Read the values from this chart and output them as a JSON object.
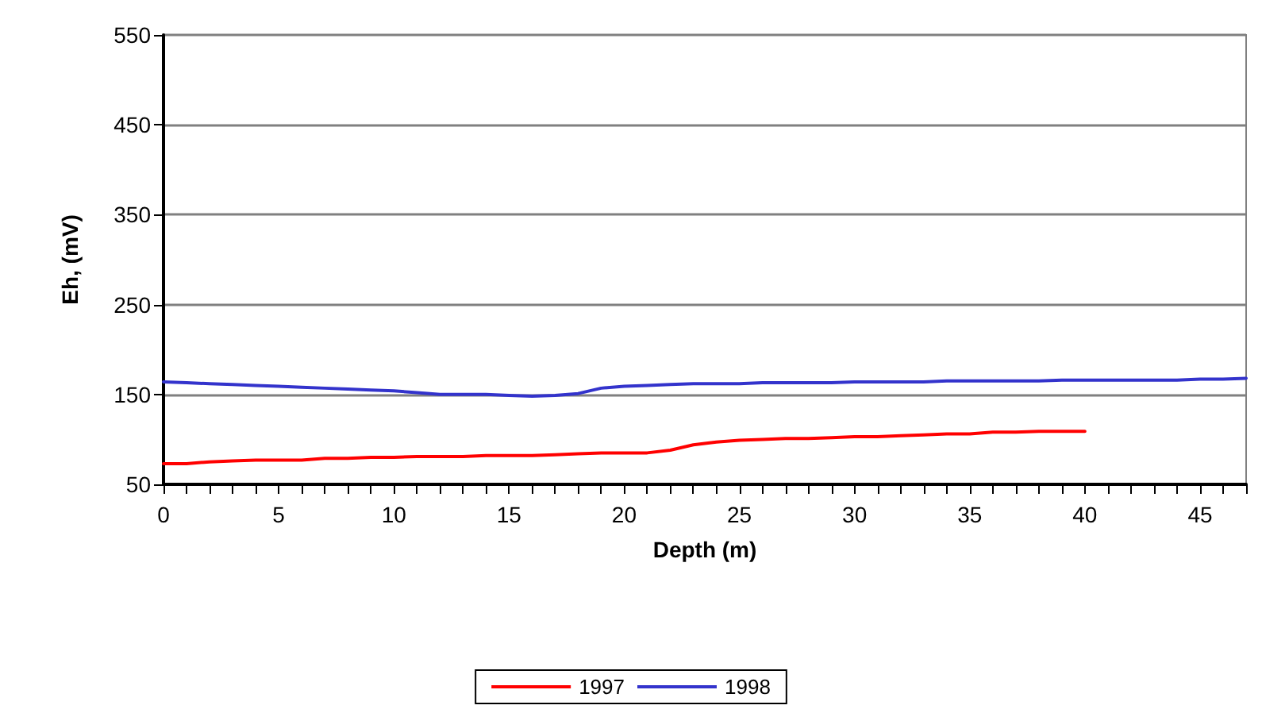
{
  "chart_data": {
    "type": "line",
    "xlabel": "Depth (m)",
    "ylabel": "Eh, (mV)",
    "series": [
      {
        "name": "1997",
        "color": "#ff0000",
        "x": [
          0,
          1,
          2,
          3,
          4,
          5,
          6,
          7,
          8,
          9,
          10,
          11,
          12,
          13,
          14,
          15,
          16,
          17,
          18,
          19,
          20,
          21,
          22,
          23,
          24,
          25,
          26,
          27,
          28,
          29,
          30,
          31,
          32,
          33,
          34,
          35,
          36,
          37,
          38,
          39,
          40
        ],
        "values": [
          73,
          73,
          75,
          76,
          77,
          77,
          77,
          79,
          79,
          80,
          80,
          81,
          81,
          81,
          82,
          82,
          82,
          83,
          84,
          85,
          85,
          85,
          88,
          94,
          97,
          99,
          100,
          101,
          101,
          102,
          103,
          103,
          104,
          105,
          106,
          106,
          108,
          108,
          109,
          109,
          109
        ]
      },
      {
        "name": "1998",
        "color": "#3333cc",
        "x": [
          0,
          1,
          2,
          3,
          4,
          5,
          6,
          7,
          8,
          9,
          10,
          11,
          12,
          13,
          14,
          15,
          16,
          17,
          18,
          19,
          20,
          21,
          22,
          23,
          24,
          25,
          26,
          27,
          28,
          29,
          30,
          31,
          32,
          33,
          34,
          35,
          36,
          37,
          38,
          39,
          40,
          41,
          42,
          43,
          44,
          45,
          46,
          47
        ],
        "values": [
          164,
          163,
          162,
          161,
          160,
          159,
          158,
          157,
          156,
          155,
          154,
          152,
          150,
          150,
          150,
          149,
          148,
          149,
          151,
          157,
          159,
          160,
          161,
          162,
          162,
          162,
          163,
          163,
          163,
          163,
          164,
          164,
          164,
          164,
          165,
          165,
          165,
          165,
          165,
          166,
          166,
          166,
          166,
          166,
          166,
          167,
          167,
          168
        ]
      }
    ],
    "xlim": [
      0,
      47
    ],
    "xticks": [
      0,
      {
        "value": 1,
        "label": null
      },
      {
        "value": 2,
        "label": null
      },
      {
        "value": 3,
        "label": null
      },
      {
        "value": 4,
        "label": null
      },
      5,
      {
        "value": 6,
        "label": null
      },
      {
        "value": 7,
        "label": null
      },
      {
        "value": 8,
        "label": null
      },
      {
        "value": 9,
        "label": null
      },
      10,
      {
        "value": 11,
        "label": null
      },
      {
        "value": 12,
        "label": null
      },
      {
        "value": 13,
        "label": null
      },
      {
        "value": 14,
        "label": null
      },
      15,
      {
        "value": 16,
        "label": null
      },
      {
        "value": 17,
        "label": null
      },
      {
        "value": 18,
        "label": null
      },
      {
        "value": 19,
        "label": null
      },
      20,
      {
        "value": 21,
        "label": null
      },
      {
        "value": 22,
        "label": null
      },
      {
        "value": 23,
        "label": null
      },
      {
        "value": 24,
        "label": null
      },
      25,
      {
        "value": 26,
        "label": null
      },
      {
        "value": 27,
        "label": null
      },
      {
        "value": 28,
        "label": null
      },
      {
        "value": 29,
        "label": null
      },
      30,
      {
        "value": 31,
        "label": null
      },
      {
        "value": 32,
        "label": null
      },
      {
        "value": 33,
        "label": null
      },
      {
        "value": 34,
        "label": null
      },
      35,
      {
        "value": 36,
        "label": null
      },
      {
        "value": 37,
        "label": null
      },
      {
        "value": 38,
        "label": null
      },
      {
        "value": 39,
        "label": null
      },
      40,
      {
        "value": 41,
        "label": null
      },
      {
        "value": 42,
        "label": null
      },
      {
        "value": 43,
        "label": null
      },
      {
        "value": 44,
        "label": null
      },
      45,
      {
        "value": 46,
        "label": null
      },
      {
        "value": 47,
        "label": null
      }
    ],
    "ylim": [
      50,
      550
    ],
    "yticks": [
      50,
      150,
      250,
      350,
      450,
      550
    ],
    "grid": "y",
    "legend": "bottom",
    "marker": "none",
    "line_style": "solid"
  }
}
